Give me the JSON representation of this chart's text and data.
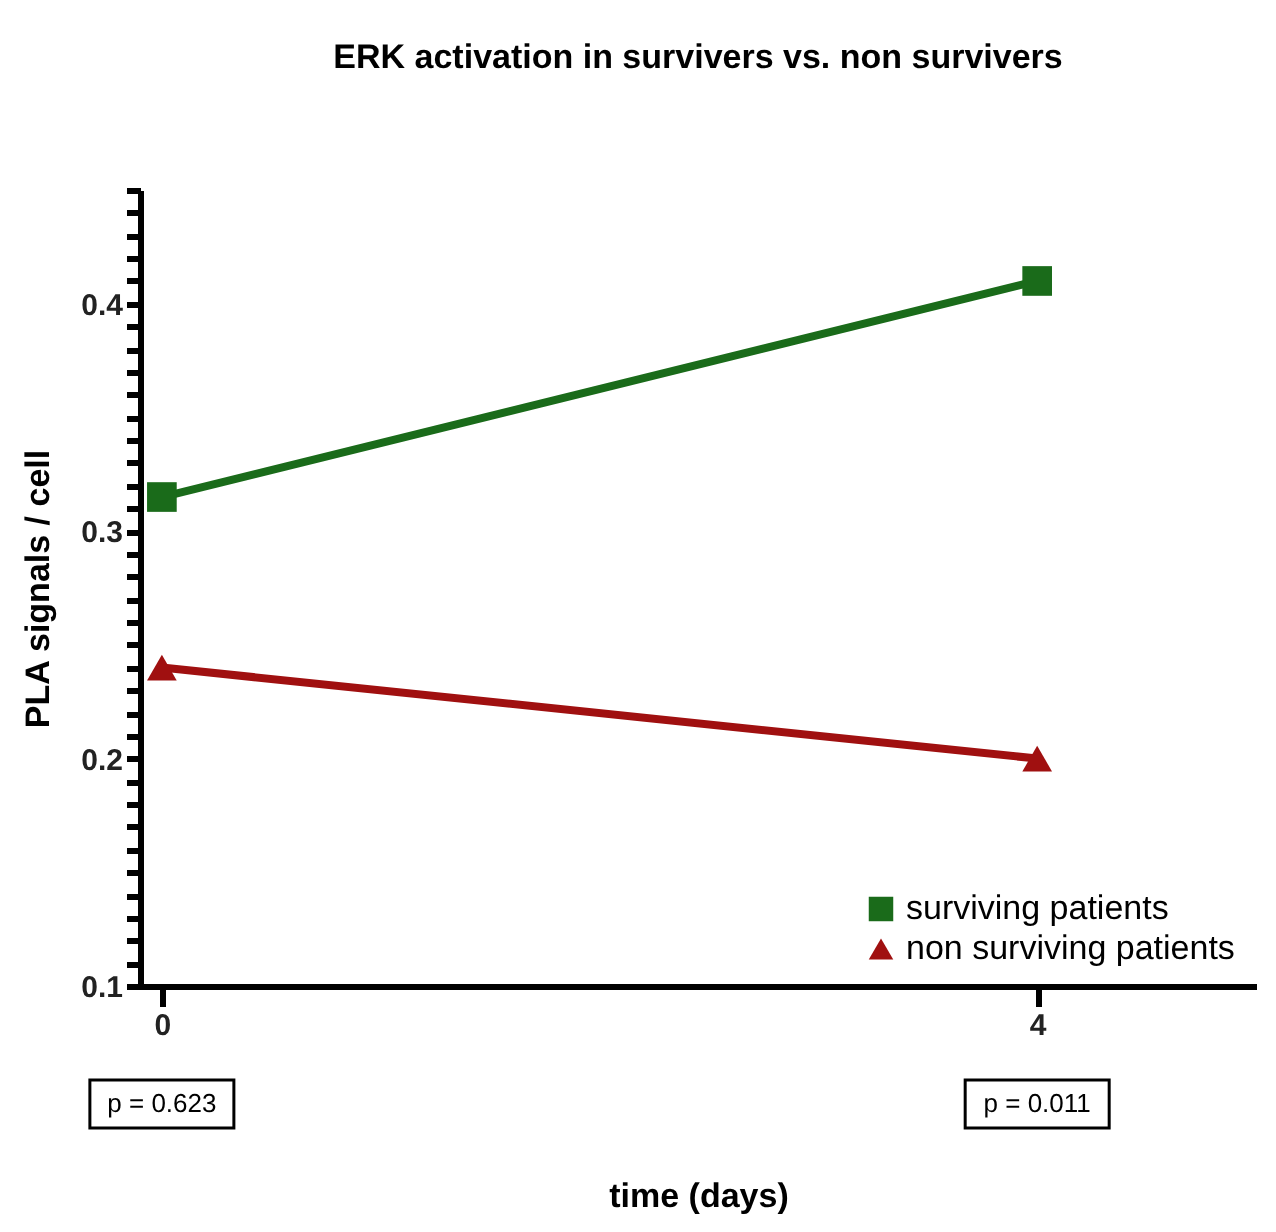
{
  "chart_data": {
    "type": "line",
    "title": "ERK activation in survivers vs. non survivers",
    "xlabel": "time (days)",
    "ylabel": "PLA signals / cell",
    "x": [
      0,
      4
    ],
    "xlim": [
      -0.1,
      5
    ],
    "xticks": [
      0,
      4
    ],
    "ylim": [
      0.1,
      0.45
    ],
    "yticks": [
      0.1,
      {
        "value": 0.11,
        "label": null
      },
      {
        "value": 0.12,
        "label": null
      },
      {
        "value": 0.13,
        "label": null
      },
      {
        "value": 0.14,
        "label": null
      },
      {
        "value": 0.15,
        "label": null
      },
      {
        "value": 0.16,
        "label": null
      },
      {
        "value": 0.17,
        "label": null
      },
      {
        "value": 0.18,
        "label": null
      },
      {
        "value": 0.19,
        "label": null
      },
      0.2,
      {
        "value": 0.21,
        "label": null
      },
      {
        "value": 0.22,
        "label": null
      },
      {
        "value": 0.23,
        "label": null
      },
      {
        "value": 0.24,
        "label": null
      },
      {
        "value": 0.25,
        "label": null
      },
      {
        "value": 0.26,
        "label": null
      },
      {
        "value": 0.27,
        "label": null
      },
      {
        "value": 0.28,
        "label": null
      },
      {
        "value": 0.29,
        "label": null
      },
      0.3,
      {
        "value": 0.31,
        "label": null
      },
      {
        "value": 0.32,
        "label": null
      },
      {
        "value": 0.33,
        "label": null
      },
      {
        "value": 0.34,
        "label": null
      },
      {
        "value": 0.35,
        "label": null
      },
      {
        "value": 0.36,
        "label": null
      },
      {
        "value": 0.37,
        "label": null
      },
      {
        "value": 0.38,
        "label": null
      },
      {
        "value": 0.39,
        "label": null
      },
      0.4,
      {
        "value": 0.41,
        "label": null
      },
      {
        "value": 0.42,
        "label": null
      },
      {
        "value": 0.43,
        "label": null
      },
      {
        "value": 0.44,
        "label": null
      },
      {
        "value": 0.45,
        "label": null
      }
    ],
    "series": [
      {
        "name": "surviving patients",
        "color": "#1a6b1a",
        "marker": "square",
        "values": [
          0.315,
          0.41
        ]
      },
      {
        "name": "non surviving patients",
        "color": "#a01010",
        "marker": "triangle",
        "values": [
          0.24,
          0.2
        ]
      }
    ],
    "annotations": [
      "p = 0.623",
      "p = 0.011"
    ],
    "grid": false,
    "legend": "bottom right",
    "line_style": "solid"
  }
}
